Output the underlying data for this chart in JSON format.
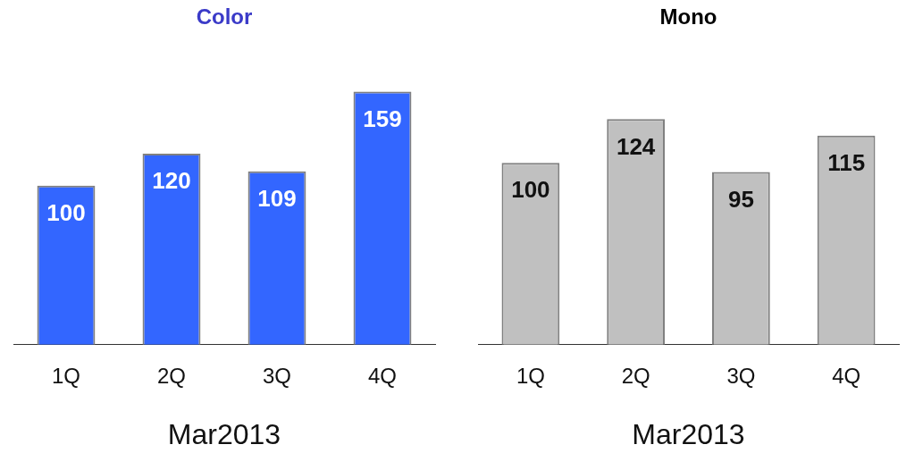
{
  "chart_data": [
    {
      "type": "bar",
      "title": "Color",
      "categories": [
        "1Q",
        "2Q",
        "3Q",
        "4Q"
      ],
      "values": [
        100,
        120,
        109,
        159
      ],
      "color": "#3366ff",
      "xlabel": "Mar2013",
      "data_labels": true,
      "grid": false,
      "legend": false
    },
    {
      "type": "bar",
      "title": "Mono",
      "categories": [
        "1Q",
        "2Q",
        "3Q",
        "4Q"
      ],
      "values": [
        100,
        124,
        95,
        115
      ],
      "color": "#c0c0c0",
      "xlabel": "Mar2013",
      "data_labels": true,
      "grid": false,
      "legend": false
    }
  ]
}
